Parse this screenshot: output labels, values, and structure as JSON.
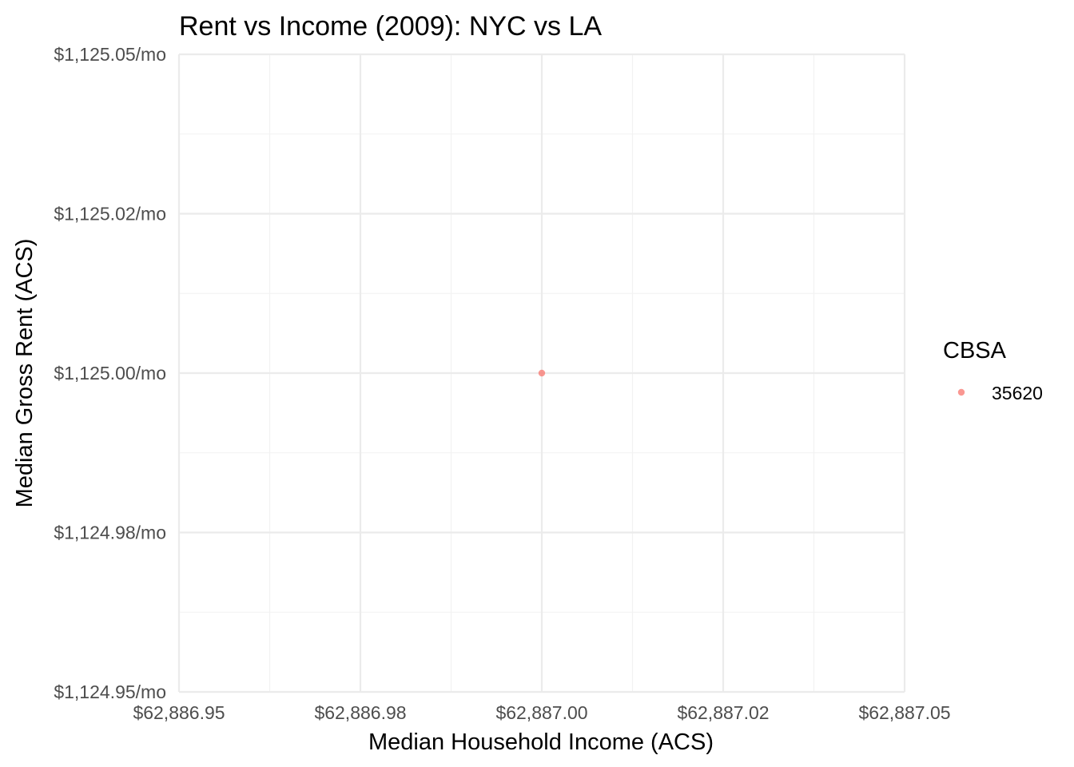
{
  "chart_data": {
    "type": "scatter",
    "title": "Rent vs Income (2009): NYC vs LA",
    "xlabel": "Median Household Income (ACS)",
    "ylabel": "Median Gross Rent (ACS)",
    "xlim": [
      62886.95,
      62887.05
    ],
    "ylim": [
      1124.95,
      1125.05
    ],
    "x_ticks": [
      62886.95,
      62886.975,
      62887.0,
      62887.025,
      62887.05
    ],
    "x_tick_labels": [
      "$62,886.95",
      "$62,886.98",
      "$62,887.00",
      "$62,887.02",
      "$62,887.05"
    ],
    "y_ticks": [
      1124.95,
      1124.975,
      1125.0,
      1125.025,
      1125.05
    ],
    "y_tick_labels": [
      "$1,124.95/mo",
      "$1,124.98/mo",
      "$1,125.00/mo",
      "$1,125.02/mo",
      "$1,125.05/mo"
    ],
    "grid": true,
    "legend": {
      "title": "CBSA",
      "position": "right"
    },
    "series": [
      {
        "name": "35620",
        "color": "#f8766d",
        "points": [
          {
            "x": 62887.0,
            "y": 1125.0
          }
        ]
      }
    ]
  }
}
